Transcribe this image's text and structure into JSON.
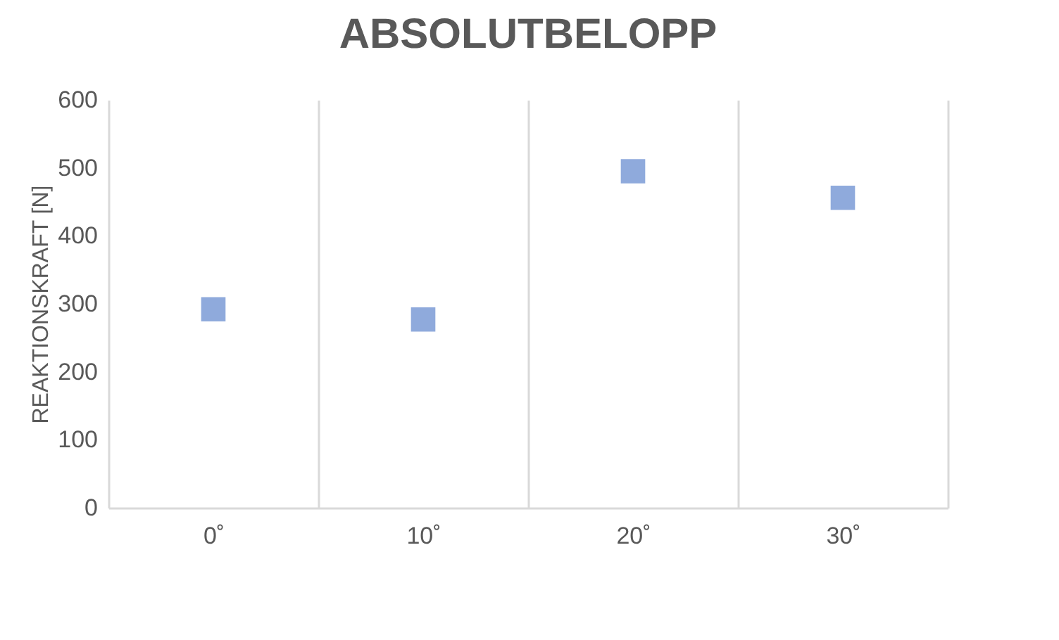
{
  "chart_data": {
    "type": "scatter",
    "title": "ABSOLUTBELOPP",
    "ylabel": "REAKTIONSKRAFT [N]",
    "categories": [
      "0˚",
      "10˚",
      "20˚",
      "30˚"
    ],
    "series": [
      {
        "color": "#8faadc",
        "values": [
          292,
          277,
          495,
          456
        ]
      }
    ],
    "ylim": [
      0,
      600
    ],
    "yticks": [
      0,
      100,
      200,
      300,
      400,
      500,
      600
    ],
    "grid": "x",
    "marker": "square",
    "legend": false
  }
}
